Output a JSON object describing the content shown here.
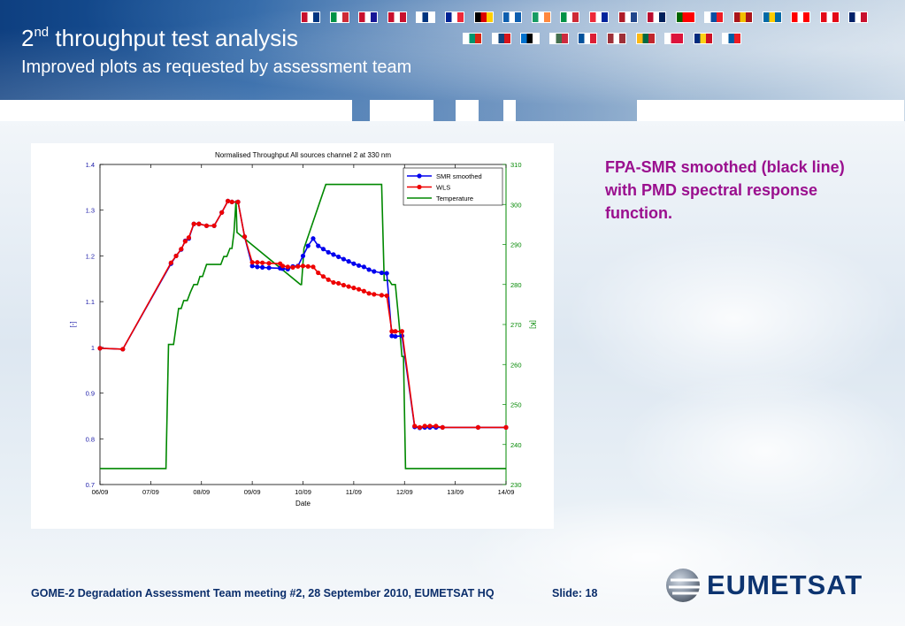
{
  "slide": {
    "title_prefix": "2",
    "title_sup": "nd",
    "title_rest": " throughput test analysis",
    "subtitle": "Improved plots as requested by assessment team",
    "note": "FPA-SMR smoothed (black line) with PMD spectral response function.",
    "footer": "GOME-2 Degradation Assessment Team meeting #2, 28 September 2010, EUMETSAT HQ",
    "slide_number": "Slide: 18",
    "logo_text": "EUMETSAT"
  },
  "flags": [
    {
      "colors": [
        "#c8102e",
        "#ffffff",
        "#003580"
      ]
    },
    {
      "colors": [
        "#009246",
        "#ffffff",
        "#ce2b37"
      ]
    },
    {
      "colors": [
        "#c8102e",
        "#ffffff",
        "#171796"
      ]
    },
    {
      "colors": [
        "#c8102e",
        "#ffffff",
        "#c8102e"
      ]
    },
    {
      "colors": [
        "#ffffff",
        "#003580",
        "#ffffff"
      ]
    },
    {
      "colors": [
        "#002395",
        "#ffffff",
        "#ed2939"
      ]
    },
    {
      "colors": [
        "#000000",
        "#dd0000",
        "#ffce00"
      ]
    },
    {
      "colors": [
        "#0d5eaf",
        "#ffffff",
        "#0d5eaf"
      ]
    },
    {
      "colors": [
        "#169b62",
        "#ffffff",
        "#ff883e"
      ]
    },
    {
      "colors": [
        "#009246",
        "#ffffff",
        "#ce2b37"
      ]
    },
    {
      "colors": [
        "#ed2939",
        "#ffffff",
        "#00239c"
      ]
    },
    {
      "colors": [
        "#ae1c28",
        "#ffffff",
        "#21468b"
      ]
    },
    {
      "colors": [
        "#ba0c2f",
        "#ffffff",
        "#00205b"
      ]
    },
    {
      "colors": [
        "#006600",
        "#ff0000",
        "#ff0000"
      ]
    },
    {
      "colors": [
        "#ffffff",
        "#0b4ea2",
        "#ee1c25"
      ]
    },
    {
      "colors": [
        "#aa151b",
        "#f1bf00",
        "#aa151b"
      ]
    },
    {
      "colors": [
        "#006aa7",
        "#fecc00",
        "#006aa7"
      ]
    },
    {
      "colors": [
        "#ff0000",
        "#ffffff",
        "#ff0000"
      ]
    },
    {
      "colors": [
        "#e30a17",
        "#ffffff",
        "#e30a17"
      ]
    },
    {
      "colors": [
        "#012169",
        "#ffffff",
        "#c8102e"
      ]
    },
    {
      "colors": [
        "#ffffff",
        "#00966e",
        "#d62612"
      ]
    },
    {
      "colors": [
        "#ffffff",
        "#11457e",
        "#d7141a"
      ]
    },
    {
      "colors": [
        "#0072ce",
        "#000000",
        "#ffffff"
      ]
    },
    {
      "colors": [
        "#ffffff",
        "#436f4d",
        "#cd2a3e"
      ]
    },
    {
      "colors": [
        "#02529c",
        "#ffffff",
        "#dc1e35"
      ]
    },
    {
      "colors": [
        "#9e3039",
        "#ffffff",
        "#9e3039"
      ]
    },
    {
      "colors": [
        "#fdb913",
        "#006a44",
        "#c1272d"
      ]
    },
    {
      "colors": [
        "#ffffff",
        "#dc143c",
        "#dc143c"
      ]
    },
    {
      "colors": [
        "#002b7f",
        "#fcd116",
        "#ce1126"
      ]
    },
    {
      "colors": [
        "#ffffff",
        "#005da4",
        "#ed1c24"
      ]
    }
  ],
  "chart_data": {
    "type": "line",
    "title": "Normalised Throughput All sources channel 2 at 330 nm",
    "xlabel": "Date",
    "ylabel": "[-]",
    "y2label": "[K]",
    "x_ticks": [
      "06/09",
      "07/09",
      "08/09",
      "09/09",
      "10/09",
      "11/09",
      "12/09",
      "13/09",
      "14/09"
    ],
    "xlim": [
      0,
      8
    ],
    "ylim": [
      0.7,
      1.4
    ],
    "y_ticks": [
      "0.7",
      "0.8",
      "0.9",
      "1",
      "1.1",
      "1.2",
      "1.3",
      "1.4"
    ],
    "y2lim": [
      230,
      310
    ],
    "y2_ticks": [
      "230",
      "240",
      "250",
      "260",
      "270",
      "280",
      "290",
      "300",
      "310"
    ],
    "grid": false,
    "legend": "top-right",
    "series": [
      {
        "name": "SMR smoothed",
        "color": "#0000ee",
        "axis": "left",
        "marker": true,
        "x": [
          0,
          0.45,
          1.4,
          1.5,
          1.6,
          1.68,
          1.75,
          1.85,
          1.95,
          2.1,
          2.25,
          2.4,
          2.52,
          2.6,
          2.72,
          2.85,
          3.0,
          3.1,
          3.2,
          3.33,
          3.55,
          3.6,
          3.7,
          3.8,
          3.9,
          4.0,
          4.1,
          4.2,
          4.3,
          4.4,
          4.5,
          4.6,
          4.7,
          4.8,
          4.9,
          5.0,
          5.1,
          5.2,
          5.3,
          5.4,
          5.55,
          5.65,
          5.75,
          5.82,
          5.95,
          6.2,
          6.3,
          6.4,
          6.5,
          6.62,
          6.75,
          7.45,
          8.0
        ],
        "values": [
          0.998,
          0.996,
          1.183,
          1.2,
          1.214,
          1.233,
          1.238,
          1.27,
          1.27,
          1.266,
          1.266,
          1.295,
          1.32,
          1.318,
          1.318,
          1.242,
          1.178,
          1.176,
          1.175,
          1.174,
          1.173,
          1.172,
          1.171,
          1.177,
          1.178,
          1.2,
          1.222,
          1.238,
          1.222,
          1.215,
          1.208,
          1.203,
          1.198,
          1.193,
          1.188,
          1.183,
          1.179,
          1.176,
          1.17,
          1.166,
          1.163,
          1.162,
          1.025,
          1.024,
          1.025,
          0.826,
          0.824,
          0.825,
          0.825,
          0.825,
          0.825,
          0.825,
          0.825
        ]
      },
      {
        "name": "WLS",
        "color": "#ee0000",
        "axis": "left",
        "marker": true,
        "x": [
          0,
          0.45,
          1.4,
          1.5,
          1.6,
          1.68,
          1.75,
          1.85,
          1.95,
          2.1,
          2.25,
          2.4,
          2.52,
          2.6,
          2.72,
          2.85,
          3.0,
          3.1,
          3.2,
          3.33,
          3.55,
          3.6,
          3.7,
          3.8,
          3.9,
          4.0,
          4.1,
          4.2,
          4.3,
          4.4,
          4.5,
          4.6,
          4.7,
          4.8,
          4.9,
          5.0,
          5.1,
          5.2,
          5.3,
          5.4,
          5.55,
          5.65,
          5.75,
          5.82,
          5.95,
          6.2,
          6.3,
          6.4,
          6.5,
          6.62,
          6.75,
          7.45,
          8.0
        ],
        "values": [
          0.998,
          0.996,
          1.185,
          1.2,
          1.215,
          1.232,
          1.24,
          1.27,
          1.27,
          1.266,
          1.266,
          1.295,
          1.32,
          1.318,
          1.318,
          1.242,
          1.186,
          1.186,
          1.185,
          1.184,
          1.183,
          1.178,
          1.176,
          1.175,
          1.177,
          1.178,
          1.177,
          1.176,
          1.163,
          1.155,
          1.148,
          1.142,
          1.14,
          1.136,
          1.133,
          1.13,
          1.127,
          1.123,
          1.118,
          1.116,
          1.114,
          1.113,
          1.035,
          1.035,
          1.035,
          0.828,
          0.825,
          0.828,
          0.828,
          0.828,
          0.825,
          0.825,
          0.825
        ]
      },
      {
        "name": "Temperature",
        "color": "#008800",
        "axis": "right",
        "marker": false,
        "x": [
          0,
          1.25,
          1.3,
          1.35,
          1.4,
          1.45,
          1.55,
          1.6,
          1.65,
          1.72,
          1.78,
          1.85,
          1.92,
          1.97,
          2.02,
          2.1,
          2.2,
          2.38,
          2.44,
          2.5,
          2.56,
          2.6,
          2.64,
          2.68,
          2.7,
          3.95,
          3.97,
          4.02,
          4.45,
          5.5,
          5.55,
          5.6,
          5.7,
          5.75,
          5.82,
          5.88,
          5.95,
          5.98,
          6.02,
          8.0
        ],
        "values": [
          234,
          234,
          234,
          265,
          265,
          265,
          274,
          274,
          276,
          276,
          278,
          280,
          280,
          282,
          282,
          285,
          285,
          285,
          287,
          287,
          289,
          289,
          293,
          301,
          293,
          280,
          280,
          289,
          305,
          305,
          305,
          281,
          281,
          280,
          280,
          272,
          262,
          262,
          234,
          234
        ]
      }
    ]
  }
}
